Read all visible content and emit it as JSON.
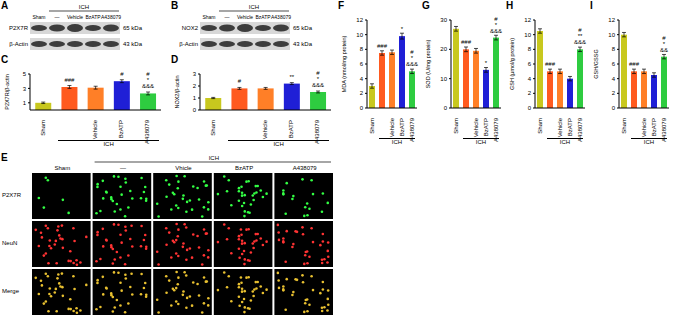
{
  "blots": [
    {
      "panel": "A",
      "group_label": "ICH",
      "lanes": [
        "Sham",
        "—",
        "Vehicle",
        "BzATP",
        "A438079"
      ],
      "rows": [
        {
          "name": "P2X7R",
          "size": "65 kDa"
        },
        {
          "name": "β-Actin",
          "size": "43 kDa"
        }
      ]
    },
    {
      "panel": "B",
      "group_label": "ICH",
      "lanes": [
        "Sham",
        "—",
        "Vehicle",
        "BzATP",
        "A438079"
      ],
      "rows": [
        {
          "name": "NOX2",
          "size": "65 kDa"
        },
        {
          "name": "β-Actin",
          "size": "43 kDa"
        }
      ]
    }
  ],
  "images": {
    "panel": "E",
    "group_label": "ICH",
    "columns": [
      "Sham",
      "—",
      "Vhicle",
      "BzATP",
      "A438079"
    ],
    "rows": [
      "P2X7R",
      "NeuN",
      "Merge"
    ]
  },
  "chart_data": [
    {
      "type": "bar",
      "panel": "C",
      "y_label": "P2X7R/β-actin",
      "group_label": "ICH",
      "categories": [
        "Sham",
        null,
        "Vehicle",
        "BzATP",
        "A438079"
      ],
      "values": [
        1.0,
        3.2,
        3.1,
        4.0,
        2.3
      ],
      "errors": [
        0.1,
        0.2,
        0.2,
        0.2,
        0.2
      ],
      "colors": [
        "#c8c81e",
        "#ff5a1f",
        "#ff7f27",
        "#1f1fd6",
        "#2ecc40"
      ],
      "ylim": [
        0,
        5
      ],
      "yticks": [
        0,
        1,
        2,
        3,
        4,
        5
      ],
      "marks": [
        null,
        [
          "###"
        ],
        null,
        [
          "#"
        ],
        [
          "#",
          "*",
          "&&&"
        ]
      ]
    },
    {
      "type": "bar",
      "panel": "D",
      "y_label": "NOX2/β-actin",
      "group_label": "ICH",
      "categories": [
        "Sham",
        null,
        "Vehicle",
        "BzATP",
        "A438079"
      ],
      "values": [
        1.0,
        1.8,
        1.8,
        2.2,
        1.5
      ],
      "errors": [
        0.05,
        0.08,
        0.08,
        0.08,
        0.08
      ],
      "colors": [
        "#c8c81e",
        "#ff5a1f",
        "#ff7f27",
        "#1f1fd6",
        "#2ecc40"
      ],
      "ylim": [
        0,
        3
      ],
      "yticks": [
        0,
        1,
        2,
        3
      ],
      "marks": [
        null,
        [
          "#"
        ],
        null,
        [
          "**"
        ],
        [
          "#",
          "*",
          "&&&"
        ]
      ]
    },
    {
      "type": "bar",
      "panel": "F",
      "y_label": "MDA (nmol/mg protein)",
      "group_label": "ICH",
      "categories": [
        "Sham",
        null,
        "Vehicle",
        "BzATP",
        "A438079"
      ],
      "values": [
        3.0,
        7.5,
        7.6,
        9.8,
        5.0
      ],
      "errors": [
        0.3,
        0.3,
        0.3,
        0.4,
        0.3
      ],
      "colors": [
        "#c8c81e",
        "#ff5a1f",
        "#ff7f27",
        "#1f1fd6",
        "#2ecc40"
      ],
      "ylim": [
        0,
        12
      ],
      "yticks": [
        0,
        2,
        4,
        6,
        8,
        10,
        12
      ],
      "marks": [
        null,
        [
          "###"
        ],
        null,
        [
          "*"
        ],
        [
          "#",
          "*",
          "&&&"
        ]
      ]
    },
    {
      "type": "bar",
      "panel": "G",
      "y_label": "SOD (U/mg protein)",
      "group_label": "ICH",
      "categories": [
        "Sham",
        null,
        "Vehicle",
        "BzATP",
        "A438079"
      ],
      "values": [
        27,
        20,
        19.5,
        13,
        24
      ],
      "errors": [
        0.8,
        0.8,
        0.8,
        0.8,
        0.8
      ],
      "colors": [
        "#c8c81e",
        "#ff5a1f",
        "#ff7f27",
        "#1f1fd6",
        "#2ecc40"
      ],
      "ylim": [
        0,
        30
      ],
      "yticks": [
        0,
        10,
        20,
        30
      ],
      "marks": [
        null,
        [
          "###"
        ],
        null,
        [
          "*"
        ],
        [
          "#",
          "*",
          "&&&"
        ]
      ]
    },
    {
      "type": "bar",
      "panel": "H",
      "y_label": "GSH (μmol/g protein)",
      "group_label": "ICH",
      "categories": [
        "Sham",
        null,
        "Vehicle",
        "BzATP",
        "A438079"
      ],
      "values": [
        10.5,
        5.0,
        5.0,
        4.0,
        8.0
      ],
      "errors": [
        0.3,
        0.3,
        0.3,
        0.3,
        0.3
      ],
      "colors": [
        "#c8c81e",
        "#ff5a1f",
        "#ff7f27",
        "#1f1fd6",
        "#2ecc40"
      ],
      "ylim": [
        0,
        12
      ],
      "yticks": [
        0,
        2,
        4,
        6,
        8,
        10,
        12
      ],
      "marks": [
        null,
        [
          "###"
        ],
        null,
        null,
        [
          "#",
          "**",
          "&&&"
        ]
      ]
    },
    {
      "type": "bar",
      "panel": "I",
      "y_label": "GSH/GSSG",
      "group_label": "ICH",
      "categories": [
        "Sham",
        null,
        "Vehicle",
        "BzATP",
        "A438079"
      ],
      "values": [
        10.0,
        5.0,
        5.0,
        4.5,
        7.0
      ],
      "errors": [
        0.3,
        0.3,
        0.3,
        0.3,
        0.3
      ],
      "colors": [
        "#c8c81e",
        "#ff5a1f",
        "#ff7f27",
        "#1f1fd6",
        "#2ecc40"
      ],
      "ylim": [
        0,
        12
      ],
      "yticks": [
        0,
        2,
        4,
        6,
        8,
        10,
        12
      ],
      "marks": [
        null,
        [
          "###"
        ],
        null,
        null,
        [
          "#",
          "*",
          "&&"
        ]
      ]
    }
  ]
}
